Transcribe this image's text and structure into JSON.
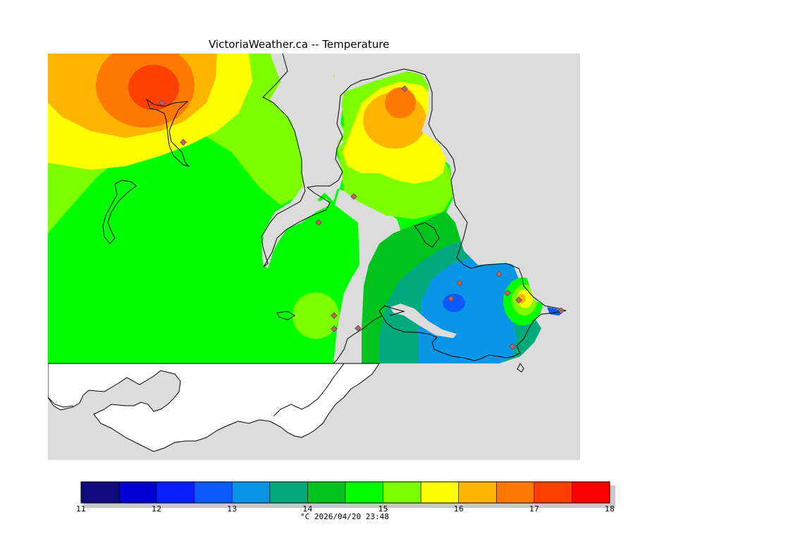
{
  "title": "VictoriaWeather.ca -- Temperature",
  "caption": "°C  2026/04/20 23:48",
  "legend": {
    "min": 11,
    "max": 18,
    "tick_labels": [
      "11",
      "12",
      "13",
      "14",
      "15",
      "16",
      "17",
      "18"
    ],
    "colors": [
      "#110b7f",
      "#0000d2",
      "#0a1eff",
      "#0a5aff",
      "#0a96e6",
      "#00aa7d",
      "#00c31e",
      "#00ff00",
      "#7dff00",
      "#ffff00",
      "#ffb400",
      "#ff7800",
      "#ff4000",
      "#ff0000"
    ]
  },
  "map": {
    "ocean_color": "#dcdcdc",
    "land_unshaded_color": "#ffffff",
    "station_marker_color": "#c06060"
  },
  "chart_data": {
    "type": "heatmap",
    "title": "VictoriaWeather.ca -- Temperature",
    "unit": "°C",
    "timestamp": "2026/04/20 23:48",
    "color_scale": {
      "min": 11,
      "max": 18,
      "step": 0.5
    },
    "features": [
      {
        "name": "",
        "peak": 17.5
      },
      {
        "name": "",
        "peak": 17.0
      },
      {
        "name": "",
        "peak": 15.0
      },
      {
        "name": "",
        "peak": 12.5
      },
      {
        "name": "",
        "peak": 16.5
      }
    ]
  }
}
